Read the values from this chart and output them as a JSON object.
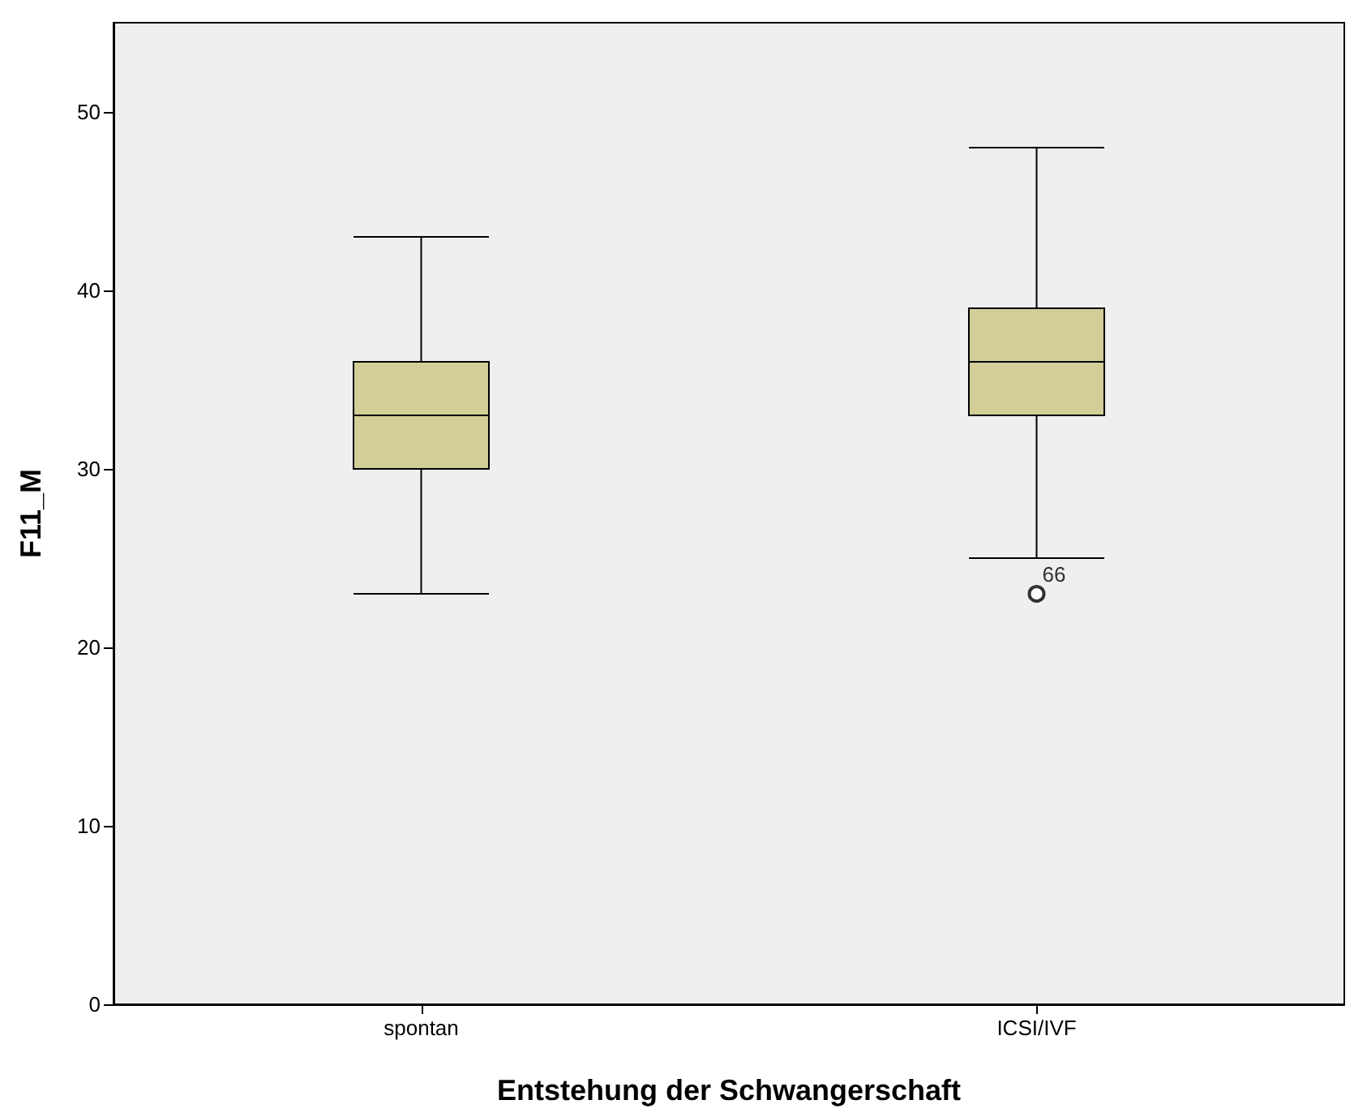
{
  "chart_data": {
    "type": "box",
    "xlabel": "Entstehung der Schwangerschaft",
    "ylabel": "F11_M",
    "categories": [
      "spontan",
      "ICSI/IVF"
    ],
    "boxes": [
      {
        "low": 23,
        "q1": 30,
        "median": 33,
        "q3": 36,
        "high": 43
      },
      {
        "low": 25,
        "q1": 33,
        "median": 36,
        "q3": 39,
        "high": 48,
        "outliers": [
          23
        ]
      }
    ],
    "color": "#d3ce97",
    "ylim": [
      0,
      55
    ],
    "yticks": [
      0,
      10,
      20,
      30,
      40,
      50
    ],
    "grid": false,
    "annotations": [
      "66"
    ]
  }
}
